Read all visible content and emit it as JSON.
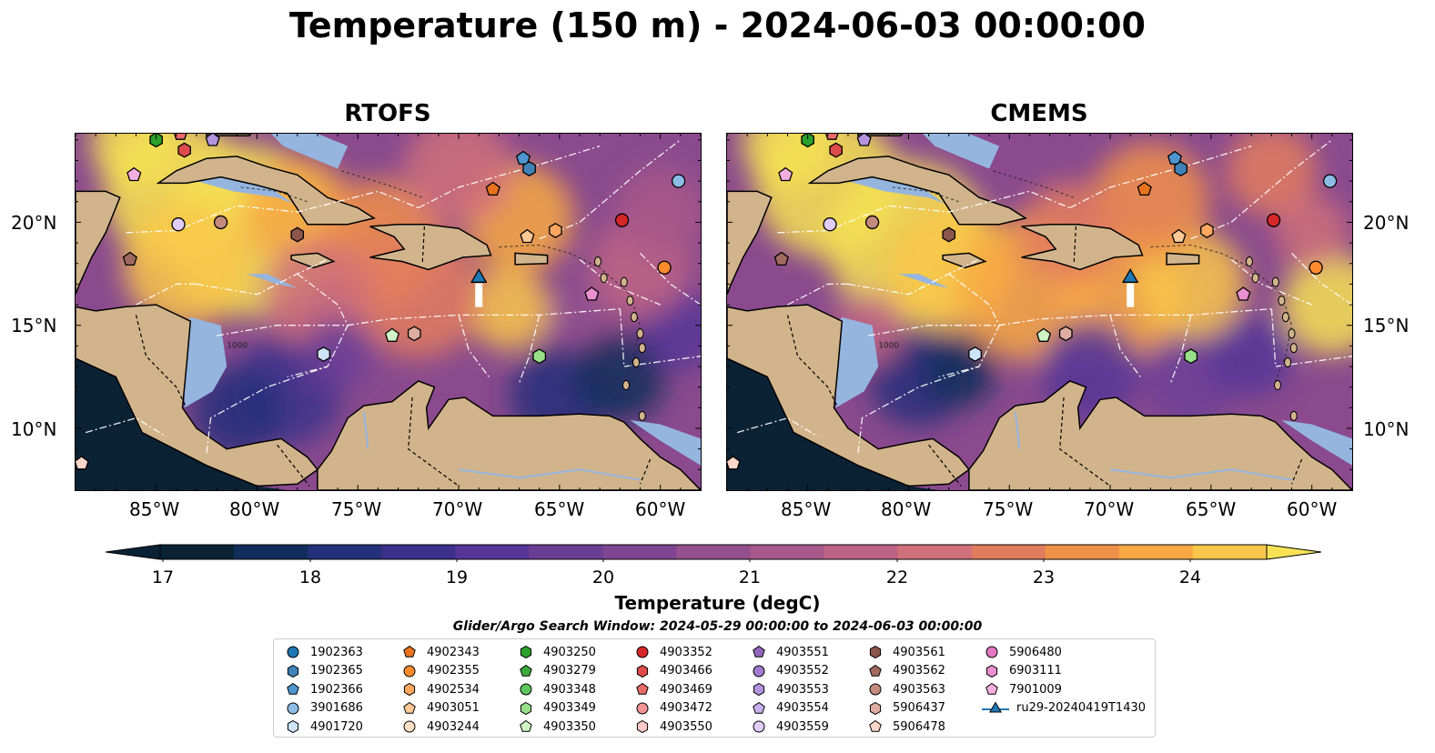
{
  "title": "Temperature (150 m) - 2024-06-03 00:00:00",
  "panels": [
    {
      "title": "RTOFS"
    },
    {
      "title": "CMEMS"
    }
  ],
  "lon_ticks": [
    "85°W",
    "80°W",
    "75°W",
    "70°W",
    "65°W",
    "60°W"
  ],
  "lat_ticks": [
    "20°N",
    "15°N",
    "10°N"
  ],
  "contour_labels": [
    "1000",
    "1000"
  ],
  "colorbar": {
    "title": "Temperature (degC)",
    "ticks": [
      "17",
      "18",
      "19",
      "20",
      "21",
      "22",
      "23",
      "24"
    ],
    "range": [
      17,
      24.5
    ],
    "colors": [
      "#0b2235",
      "#102d5c",
      "#25307a",
      "#3b318a",
      "#563596",
      "#6b3e96",
      "#7f4592",
      "#93508e",
      "#a8588a",
      "#bd6484",
      "#d0707a",
      "#e27c5f",
      "#f0914a",
      "#f8a943",
      "#f9c74a",
      "#f6e254"
    ]
  },
  "search_window": "Glider/Argo Search Window: 2024-05-29 00:00:00 to 2024-06-03 00:00:00",
  "legend": [
    {
      "label": "1902363",
      "marker": "circle",
      "color": "#1f77b4"
    },
    {
      "label": "1902365",
      "marker": "hexagon",
      "color": "#3f82b8"
    },
    {
      "label": "1902366",
      "marker": "pentagon",
      "color": "#4f95cf"
    },
    {
      "label": "3901686",
      "marker": "circle",
      "color": "#8bbde6"
    },
    {
      "label": "4901720",
      "marker": "hexagon",
      "color": "#cde3f7"
    },
    {
      "label": "4902343",
      "marker": "pentagon",
      "color": "#e8731c"
    },
    {
      "label": "4902355",
      "marker": "circle",
      "color": "#ff8b2f"
    },
    {
      "label": "4902534",
      "marker": "hexagon",
      "color": "#ffa75e"
    },
    {
      "label": "4903051",
      "marker": "pentagon",
      "color": "#ffc896"
    },
    {
      "label": "4903244",
      "marker": "circle",
      "color": "#ffe0c6"
    },
    {
      "label": "4903250",
      "marker": "hexagon",
      "color": "#2ca02c"
    },
    {
      "label": "4903279",
      "marker": "pentagon",
      "color": "#3aa93a"
    },
    {
      "label": "4903348",
      "marker": "circle",
      "color": "#5cc45c"
    },
    {
      "label": "4903349",
      "marker": "hexagon",
      "color": "#98df8a"
    },
    {
      "label": "4903350",
      "marker": "pentagon",
      "color": "#cff3c5"
    },
    {
      "label": "4903352",
      "marker": "circle",
      "color": "#d62728"
    },
    {
      "label": "4903466",
      "marker": "hexagon",
      "color": "#dc4a4a"
    },
    {
      "label": "4903469",
      "marker": "pentagon",
      "color": "#e86a6a"
    },
    {
      "label": "4903472",
      "marker": "circle",
      "color": "#f39393"
    },
    {
      "label": "4903550",
      "marker": "hexagon",
      "color": "#fbc7c7"
    },
    {
      "label": "4903551",
      "marker": "pentagon",
      "color": "#9467bd"
    },
    {
      "label": "4903552",
      "marker": "circle",
      "color": "#a27ad0"
    },
    {
      "label": "4903553",
      "marker": "hexagon",
      "color": "#b493de"
    },
    {
      "label": "4903554",
      "marker": "pentagon",
      "color": "#c8aeee"
    },
    {
      "label": "4903559",
      "marker": "circle",
      "color": "#e0cdfa"
    },
    {
      "label": "4903561",
      "marker": "hexagon",
      "color": "#8c564b"
    },
    {
      "label": "4903562",
      "marker": "pentagon",
      "color": "#a06a5e"
    },
    {
      "label": "4903563",
      "marker": "circle",
      "color": "#c48a7e"
    },
    {
      "label": "5906437",
      "marker": "hexagon",
      "color": "#e0ada2"
    },
    {
      "label": "5906478",
      "marker": "pentagon",
      "color": "#fbd5c8"
    },
    {
      "label": "5906480",
      "marker": "circle",
      "color": "#e377c2"
    },
    {
      "label": "6903111",
      "marker": "hexagon",
      "color": "#ea8fcf"
    },
    {
      "label": "7901009",
      "marker": "pentagon",
      "color": "#f3aee0"
    },
    {
      "label": "ru29-20240419T1430",
      "marker": "triangle-line",
      "color": "#1f77b4"
    }
  ],
  "map_markers": [
    {
      "lon": -85,
      "lat": 24.0,
      "marker": "hexagon",
      "color": "#2ca02c"
    },
    {
      "lon": -83.8,
      "lat": 24.3,
      "marker": "pentagon",
      "color": "#e86a6a"
    },
    {
      "lon": -82.2,
      "lat": 24.0,
      "marker": "pentagon",
      "color": "#b493de"
    },
    {
      "lon": -83.6,
      "lat": 23.5,
      "marker": "hexagon",
      "color": "#dc4a4a"
    },
    {
      "lon": -86.1,
      "lat": 22.3,
      "marker": "pentagon",
      "color": "#f3aee0"
    },
    {
      "lon": -83.9,
      "lat": 19.9,
      "marker": "circle",
      "color": "#e0cdfa"
    },
    {
      "lon": -81.8,
      "lat": 20.0,
      "marker": "circle",
      "color": "#c48a7e"
    },
    {
      "lon": -78.0,
      "lat": 19.4,
      "marker": "hexagon",
      "color": "#8c564b"
    },
    {
      "lon": -86.3,
      "lat": 18.2,
      "marker": "pentagon",
      "color": "#a06a5e"
    },
    {
      "lon": -66.8,
      "lat": 23.1,
      "marker": "pentagon",
      "color": "#4f95cf"
    },
    {
      "lon": -66.5,
      "lat": 22.6,
      "marker": "hexagon",
      "color": "#3f82b8"
    },
    {
      "lon": -68.3,
      "lat": 21.6,
      "marker": "pentagon",
      "color": "#e8731c"
    },
    {
      "lon": -59.1,
      "lat": 22.0,
      "marker": "circle",
      "color": "#8bbde6"
    },
    {
      "lon": -61.9,
      "lat": 20.1,
      "marker": "circle",
      "color": "#d62728"
    },
    {
      "lon": -66.6,
      "lat": 19.3,
      "marker": "pentagon",
      "color": "#ffc896"
    },
    {
      "lon": -65.2,
      "lat": 19.6,
      "marker": "hexagon",
      "color": "#ffa75e"
    },
    {
      "lon": -59.8,
      "lat": 17.8,
      "marker": "circle",
      "color": "#ff8b2f"
    },
    {
      "lon": -63.4,
      "lat": 16.5,
      "marker": "pentagon",
      "color": "#ea8fcf"
    },
    {
      "lon": -73.3,
      "lat": 14.5,
      "marker": "pentagon",
      "color": "#cff3c5"
    },
    {
      "lon": -72.2,
      "lat": 14.6,
      "marker": "hexagon",
      "color": "#e0ada2"
    },
    {
      "lon": -76.7,
      "lat": 13.6,
      "marker": "hexagon",
      "color": "#cde3f7"
    },
    {
      "lon": -66.0,
      "lat": 13.5,
      "marker": "hexagon",
      "color": "#98df8a"
    },
    {
      "lon": -88.7,
      "lat": 8.3,
      "marker": "pentagon",
      "color": "#fbd5c8"
    }
  ],
  "glider": {
    "lon": -69.0,
    "lat": 17.3,
    "color": "#1f77b4"
  }
}
